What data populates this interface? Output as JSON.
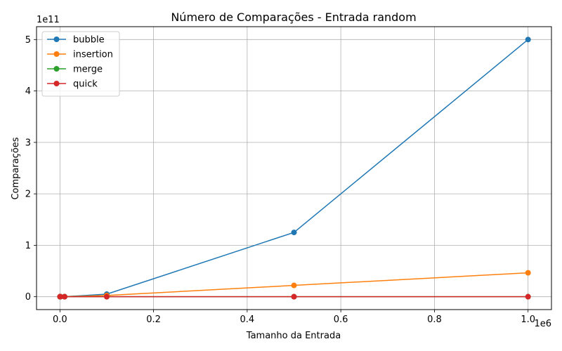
{
  "chart_data": {
    "type": "line",
    "title": "Número de Comparações - Entrada random",
    "xlabel": "Tamanho da Entrada",
    "ylabel": "Comparações",
    "x_offset_label": "1e6",
    "y_offset_label": "1e11",
    "x": [
      100,
      1000,
      10000,
      100000,
      500000,
      1000000
    ],
    "xlim": [
      -50000,
      1050000
    ],
    "ylim": [
      -25000000000.0,
      525000000000.0
    ],
    "x_ticks": [
      0,
      200000,
      400000,
      600000,
      800000,
      1000000
    ],
    "x_tick_labels": [
      "0.0",
      "0.2",
      "0.4",
      "0.6",
      "0.8",
      "1.0"
    ],
    "y_ticks": [
      0,
      100000000000.0,
      200000000000.0,
      300000000000.0,
      400000000000.0,
      500000000000.0
    ],
    "y_tick_labels": [
      "0",
      "1",
      "2",
      "3",
      "4",
      "5"
    ],
    "grid": true,
    "legend_position": "upper-left",
    "series": [
      {
        "name": "bubble",
        "color": "#1f77b4",
        "values": [
          4950,
          499500,
          49995000,
          4999950000,
          124999750000,
          499999500000
        ]
      },
      {
        "name": "insertion",
        "color": "#ff7f0e",
        "values": [
          2500,
          250000,
          25000000,
          2500000000,
          22000000000,
          46500000000
        ]
      },
      {
        "name": "merge",
        "color": "#2ca02c",
        "values": [
          540,
          8700,
          120000,
          1530000,
          8700000,
          18600000
        ]
      },
      {
        "name": "quick",
        "color": "#d62728",
        "values": [
          650,
          11000,
          150000,
          2000000,
          11000000,
          24000000
        ]
      }
    ]
  }
}
